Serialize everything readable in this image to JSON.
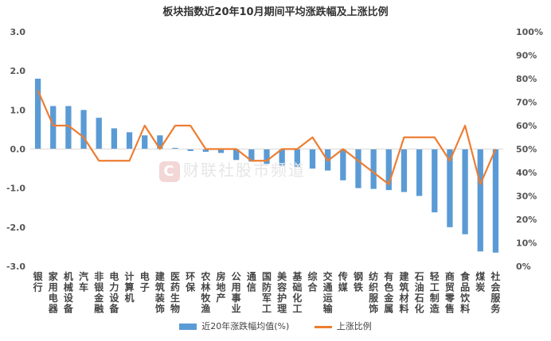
{
  "chart_data": {
    "type": "bar",
    "title": "板块指数近20年10月期间平均涨跌幅及上涨比例",
    "categories": [
      "银行",
      "家用电器",
      "机械设备",
      "汽车",
      "非银金融",
      "电力设备",
      "计算机",
      "电子",
      "建筑装饰",
      "医药生物",
      "环保",
      "农林牧渔",
      "房地产",
      "公用事业",
      "通信",
      "国防军工",
      "美容护理",
      "基础化工",
      "综合",
      "交通运输",
      "传媒",
      "钢铁",
      "纺织服饰",
      "有色金属",
      "建筑材料",
      "石油石化",
      "轻工制造",
      "商贸零售",
      "食品饮料",
      "煤炭",
      "社会服务"
    ],
    "series": [
      {
        "name": "近20年涨跌幅均值(%)",
        "type": "bar",
        "axis": "left",
        "values": [
          1.8,
          1.1,
          1.1,
          1.0,
          0.8,
          0.53,
          0.43,
          0.35,
          0.35,
          0.03,
          -0.05,
          -0.07,
          -0.1,
          -0.28,
          -0.32,
          -0.38,
          -0.42,
          -0.45,
          -0.5,
          -0.55,
          -0.8,
          -1.0,
          -1.02,
          -1.05,
          -1.1,
          -1.2,
          -1.62,
          -2.0,
          -2.18,
          -2.62,
          -2.65
        ]
      },
      {
        "name": "上涨比例",
        "type": "line",
        "axis": "right",
        "values": [
          75,
          60,
          60,
          55,
          45,
          45,
          45,
          60,
          50,
          60,
          60,
          50,
          50,
          50,
          45,
          45,
          50,
          50,
          55,
          45,
          50,
          45,
          40,
          35,
          55,
          55,
          55,
          45,
          60,
          35,
          50
        ]
      }
    ],
    "ylim_left": [
      -3.0,
      3.0
    ],
    "left_ticks": [
      "3.0",
      "2.0",
      "1.0",
      "0.0",
      "-1.0",
      "-2.0",
      "-3.0"
    ],
    "ylim_right": [
      0,
      100
    ],
    "right_ticks": [
      "100%",
      "90%",
      "80%",
      "70%",
      "60%",
      "50%",
      "40%",
      "30%",
      "20%",
      "10%",
      "0%"
    ],
    "legend_position": "bottom",
    "grid": false,
    "colors": {
      "bar": "#5b9bd5",
      "line": "#ed7d31"
    }
  },
  "watermark_text": "财联社股市频道",
  "watermark_logo": "C"
}
